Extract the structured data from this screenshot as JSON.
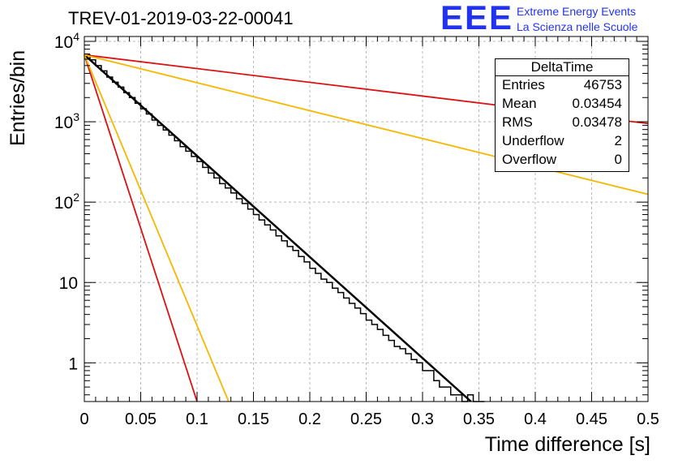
{
  "title": "TREV-01-2019-03-22-00041",
  "brand": {
    "logo": "EEE",
    "line1": "Extreme Energy Events",
    "line2": "La Scienza nelle Scuole",
    "color": "#2233ee"
  },
  "stats": {
    "name": "DeltaTime",
    "rows": [
      {
        "key": "Entries",
        "value": "46753"
      },
      {
        "key": "Mean",
        "value": "0.03454"
      },
      {
        "key": "RMS",
        "value": "0.03478"
      },
      {
        "key": "Underflow",
        "value": "2"
      },
      {
        "key": "Overflow",
        "value": "0"
      }
    ]
  },
  "chart_data": {
    "type": "line",
    "xlabel": "Time difference [s]",
    "ylabel": "Entries/bin",
    "xlim": [
      0,
      0.5
    ],
    "ylim": [
      0.33,
      11500
    ],
    "yscale": "log",
    "grid": true,
    "x_ticks": [
      "0",
      "0.05",
      "0.1",
      "0.15",
      "0.2",
      "0.25",
      "0.3",
      "0.35",
      "0.4",
      "0.45",
      "0.5"
    ],
    "y_ticks": [
      {
        "value": 1,
        "label": "1"
      },
      {
        "value": 10,
        "label": "10"
      },
      {
        "value": 100,
        "label": "10^2"
      },
      {
        "value": 1000,
        "label": "10^3"
      },
      {
        "value": 10000,
        "label": "10^4"
      }
    ],
    "histogram": {
      "bin_width": 0.005,
      "color": "#000000",
      "counts": [
        6800,
        5900,
        5000,
        4300,
        3600,
        3100,
        2700,
        2300,
        2000,
        1700,
        1450,
        1250,
        1050,
        900,
        790,
        680,
        580,
        490,
        430,
        370,
        320,
        270,
        230,
        200,
        170,
        150,
        130,
        110,
        96,
        82,
        70,
        60,
        52,
        45,
        38,
        33,
        28,
        25,
        21,
        18,
        15,
        13,
        11,
        10,
        8.5,
        7.5,
        6.4,
        5.5,
        4.8,
        4.1,
        3.4,
        3,
        2.6,
        2.2,
        1.9,
        1.6,
        1.5,
        1.3,
        1.1,
        1,
        0.8,
        0.8,
        0.6,
        0.5,
        0.5,
        0.4,
        0.4,
        0.3,
        0.4,
        0.3,
        0.3
      ]
    },
    "series": [
      {
        "color": "#000000",
        "x": [
          0,
          0.343
        ],
        "y": [
          6800,
          0.33
        ]
      },
      {
        "color": "#dd1111",
        "x": [
          0,
          0.5
        ],
        "y": [
          6800,
          950
        ]
      },
      {
        "color": "#dd1111",
        "x": [
          0,
          0.1
        ],
        "y": [
          6800,
          0.33
        ]
      },
      {
        "color": "#f5b800",
        "x": [
          0,
          0.5
        ],
        "y": [
          6800,
          125
        ]
      },
      {
        "color": "#f5b800",
        "x": [
          0,
          0.128
        ],
        "y": [
          6800,
          0.33
        ]
      }
    ]
  }
}
